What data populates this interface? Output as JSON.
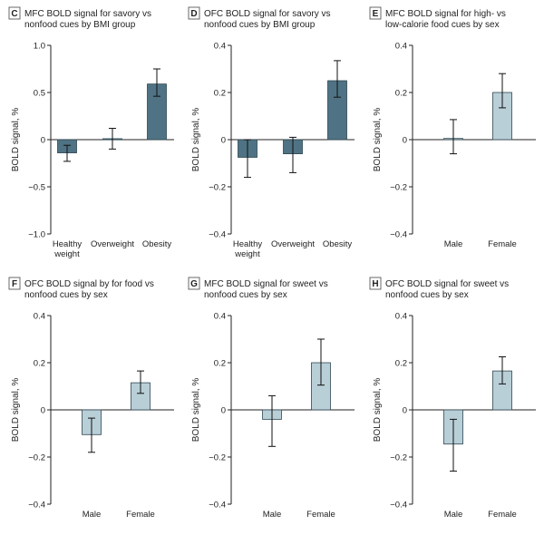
{
  "colors": {
    "bmi_bar": "#4f7384",
    "sex_bar": "#b9cfd8",
    "bar_stroke": "#2f4650",
    "axis": "#222222",
    "badge_border": "#444444"
  },
  "chart_data": [
    {
      "type": "bar",
      "panel": "C",
      "title_lines": [
        "MFC BOLD signal for savory vs",
        "nonfood cues by BMI group"
      ],
      "ylabel": "BOLD signal, %",
      "ylim": [
        -1.0,
        1.0
      ],
      "yticks": [
        -1.0,
        -0.5,
        0,
        0.5,
        1.0
      ],
      "ytick_labels": [
        "−1.0",
        "−0.5",
        "0",
        "0.5",
        "1.0"
      ],
      "categories": [
        [
          "Healthy",
          "weight"
        ],
        [
          "Overweight"
        ],
        [
          "Obesity"
        ]
      ],
      "values": [
        -0.14,
        0.01,
        0.59
      ],
      "err_low": [
        -0.23,
        -0.1,
        0.46
      ],
      "err_high": [
        -0.06,
        0.12,
        0.75
      ],
      "color": "bmi"
    },
    {
      "type": "bar",
      "panel": "D",
      "title_lines": [
        "OFC BOLD signal for savory vs",
        "nonfood cues by BMI group"
      ],
      "ylabel": "BOLD signal, %",
      "ylim": [
        -0.4,
        0.4
      ],
      "yticks": [
        -0.4,
        -0.2,
        0,
        0.2,
        0.4
      ],
      "ytick_labels": [
        "−0.4",
        "−0.2",
        "0",
        "0.2",
        "0.4"
      ],
      "categories": [
        [
          "Healthy",
          "weight"
        ],
        [
          "Overweight"
        ],
        [
          "Obesity"
        ]
      ],
      "values": [
        -0.075,
        -0.06,
        0.25
      ],
      "err_low": [
        -0.16,
        -0.14,
        0.18
      ],
      "err_high": [
        0.0,
        0.01,
        0.335
      ],
      "color": "bmi"
    },
    {
      "type": "bar",
      "panel": "E",
      "title_lines": [
        "MFC BOLD signal for high- vs",
        "low-calorie food cues by sex"
      ],
      "ylabel": "BOLD signal, %",
      "ylim": [
        -0.4,
        0.4
      ],
      "yticks": [
        -0.4,
        -0.2,
        0,
        0.2,
        0.4
      ],
      "ytick_labels": [
        "−0.4",
        "−0.2",
        "0",
        "0.2",
        "0.4"
      ],
      "categories": [
        [
          "Male"
        ],
        [
          "Female"
        ]
      ],
      "values": [
        0.005,
        0.2
      ],
      "err_low": [
        -0.06,
        0.135
      ],
      "err_high": [
        0.085,
        0.28
      ],
      "color": "sex"
    },
    {
      "type": "bar",
      "panel": "F",
      "title_lines": [
        "OFC BOLD signal by for food vs",
        "nonfood cues by sex"
      ],
      "ylabel": "BOLD signal, %",
      "ylim": [
        -0.4,
        0.4
      ],
      "yticks": [
        -0.4,
        -0.2,
        0,
        0.2,
        0.4
      ],
      "ytick_labels": [
        "−0.4",
        "−0.2",
        "0",
        "0.2",
        "0.4"
      ],
      "categories": [
        [
          "Male"
        ],
        [
          "Female"
        ]
      ],
      "values": [
        -0.105,
        0.115
      ],
      "err_low": [
        -0.18,
        0.07
      ],
      "err_high": [
        -0.035,
        0.165
      ],
      "color": "sex"
    },
    {
      "type": "bar",
      "panel": "G",
      "title_lines": [
        "MFC BOLD signal for sweet vs",
        "nonfood cues by sex"
      ],
      "ylabel": "BOLD signal, %",
      "ylim": [
        -0.4,
        0.4
      ],
      "yticks": [
        -0.4,
        -0.2,
        0,
        0.2,
        0.4
      ],
      "ytick_labels": [
        "−0.4",
        "−0.2",
        "0",
        "0.2",
        "0.4"
      ],
      "categories": [
        [
          "Male"
        ],
        [
          "Female"
        ]
      ],
      "values": [
        -0.04,
        0.2
      ],
      "err_low": [
        -0.155,
        0.105
      ],
      "err_high": [
        0.06,
        0.3
      ],
      "color": "sex"
    },
    {
      "type": "bar",
      "panel": "H",
      "title_lines": [
        "OFC BOLD signal for sweet vs",
        "nonfood cues by sex"
      ],
      "ylabel": "BOLD signal, %",
      "ylim": [
        -0.4,
        0.4
      ],
      "yticks": [
        -0.4,
        -0.2,
        0,
        0.2,
        0.4
      ],
      "ytick_labels": [
        "−0.4",
        "−0.2",
        "0",
        "0.2",
        "0.4"
      ],
      "categories": [
        [
          "Male"
        ],
        [
          "Female"
        ]
      ],
      "values": [
        -0.145,
        0.165
      ],
      "err_low": [
        -0.26,
        0.11
      ],
      "err_high": [
        -0.04,
        0.225
      ],
      "color": "sex"
    }
  ]
}
